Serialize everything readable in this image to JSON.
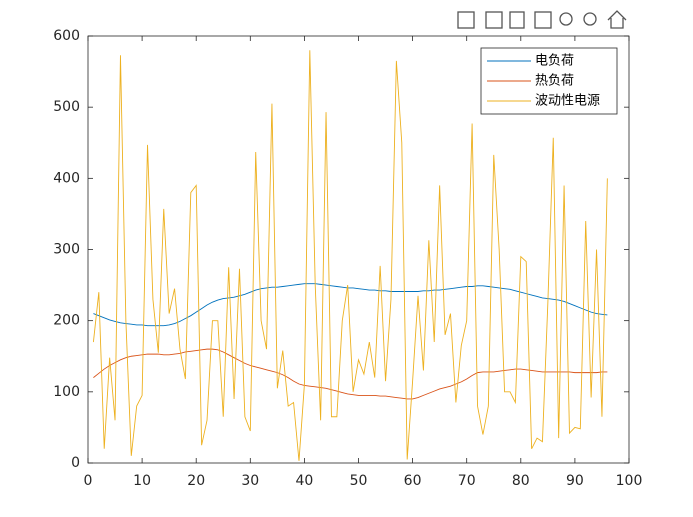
{
  "chart_data": {
    "type": "line",
    "x": [
      1,
      2,
      3,
      4,
      5,
      6,
      7,
      8,
      9,
      10,
      11,
      12,
      13,
      14,
      15,
      16,
      17,
      18,
      19,
      20,
      21,
      22,
      23,
      24,
      25,
      26,
      27,
      28,
      29,
      30,
      31,
      32,
      33,
      34,
      35,
      36,
      37,
      38,
      39,
      40,
      41,
      42,
      43,
      44,
      45,
      46,
      47,
      48,
      49,
      50,
      51,
      52,
      53,
      54,
      55,
      56,
      57,
      58,
      59,
      60,
      61,
      62,
      63,
      64,
      65,
      66,
      67,
      68,
      69,
      70,
      71,
      72,
      73,
      74,
      75,
      76,
      77,
      78,
      79,
      80,
      81,
      82,
      83,
      84,
      85,
      86,
      87,
      88,
      89,
      90,
      91,
      92,
      93,
      94,
      95,
      96
    ],
    "series": [
      {
        "name": "电负荷",
        "color": "#0072BD",
        "values": [
          210,
          207,
          204,
          201,
          199,
          197,
          196,
          195,
          194,
          194,
          193,
          193,
          193,
          193,
          194,
          196,
          199,
          203,
          207,
          212,
          217,
          222,
          226,
          229,
          231,
          232,
          233,
          235,
          237,
          240,
          243,
          245,
          246,
          247,
          247,
          248,
          249,
          250,
          251,
          252,
          252,
          252,
          251,
          250,
          249,
          248,
          247,
          246,
          246,
          245,
          244,
          243,
          243,
          242,
          242,
          241,
          241,
          241,
          241,
          241,
          241,
          242,
          242,
          243,
          243,
          244,
          245,
          246,
          247,
          248,
          248,
          249,
          249,
          248,
          247,
          246,
          245,
          244,
          242,
          240,
          238,
          236,
          234,
          232,
          231,
          230,
          229,
          227,
          224,
          221,
          218,
          215,
          212,
          210,
          209,
          208
        ]
      },
      {
        "name": "热负荷",
        "color": "#D95319",
        "values": [
          120,
          126,
          132,
          137,
          141,
          145,
          148,
          150,
          151,
          152,
          153,
          153,
          153,
          152,
          152,
          153,
          154,
          156,
          157,
          158,
          159,
          160,
          160,
          159,
          156,
          152,
          148,
          144,
          140,
          137,
          135,
          133,
          131,
          129,
          127,
          124,
          120,
          115,
          111,
          109,
          108,
          107,
          106,
          105,
          103,
          101,
          99,
          97,
          96,
          95,
          95,
          95,
          95,
          94,
          94,
          93,
          92,
          91,
          90,
          90,
          92,
          95,
          98,
          101,
          104,
          106,
          108,
          111,
          114,
          118,
          123,
          127,
          128,
          128,
          128,
          129,
          130,
          131,
          132,
          132,
          131,
          130,
          129,
          128,
          128,
          128,
          128,
          128,
          128,
          127,
          127,
          127,
          127,
          127,
          128,
          128
        ]
      },
      {
        "name": "波动性电源",
        "color": "#EDB120",
        "values": [
          170,
          240,
          20,
          148,
          60,
          573,
          200,
          10,
          80,
          95,
          447,
          230,
          155,
          357,
          210,
          245,
          160,
          118,
          380,
          390,
          25,
          60,
          200,
          200,
          65,
          275,
          90,
          273,
          65,
          45,
          437,
          200,
          160,
          505,
          105,
          158,
          80,
          85,
          3,
          110,
          580,
          250,
          60,
          493,
          65,
          65,
          200,
          250,
          100,
          145,
          125,
          170,
          120,
          277,
          115,
          230,
          565,
          450,
          5,
          115,
          235,
          130,
          313,
          170,
          390,
          180,
          210,
          85,
          165,
          200,
          477,
          80,
          40,
          80,
          433,
          300,
          100,
          100,
          85,
          290,
          283,
          20,
          35,
          30,
          225,
          457,
          35,
          390,
          42,
          50,
          48,
          340,
          92,
          300,
          65,
          400
        ]
      }
    ],
    "xlim": [
      0,
      100
    ],
    "xticks": [
      0,
      10,
      20,
      30,
      40,
      50,
      60,
      70,
      80,
      90,
      100
    ],
    "ylim": [
      0,
      600
    ],
    "yticks": [
      0,
      100,
      200,
      300,
      400,
      500,
      600
    ],
    "legend": "upper right"
  }
}
